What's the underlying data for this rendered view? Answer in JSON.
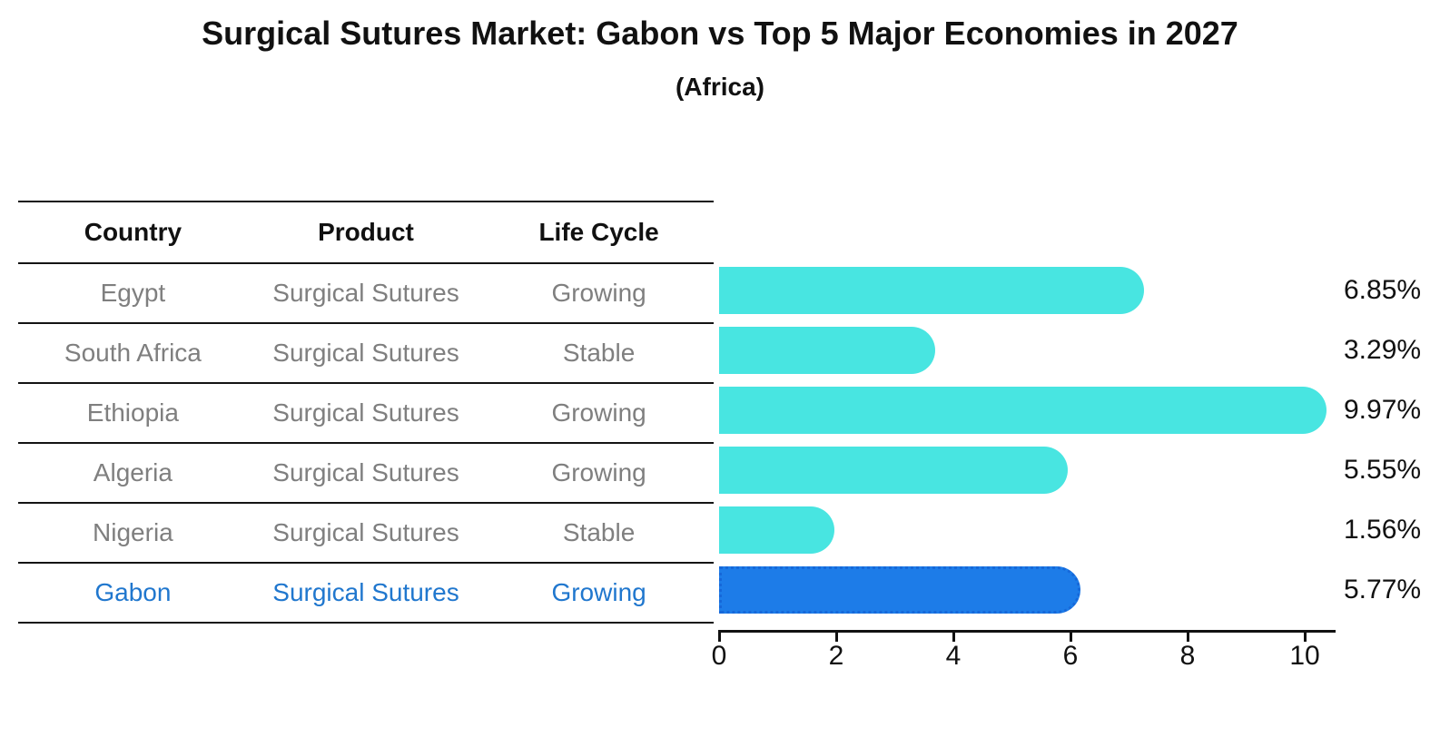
{
  "title": "Surgical Sutures Market: Gabon vs Top 5 Major Economies in 2027",
  "subtitle": "(Africa)",
  "table": {
    "headers": [
      "Country",
      "Product",
      "Life Cycle"
    ],
    "rows": [
      {
        "country": "Egypt",
        "product": "Surgical Sutures",
        "life_cycle": "Growing",
        "highlight": false
      },
      {
        "country": "South Africa",
        "product": "Surgical Sutures",
        "life_cycle": "Stable",
        "highlight": false
      },
      {
        "country": "Ethiopia",
        "product": "Surgical Sutures",
        "life_cycle": "Growing",
        "highlight": false
      },
      {
        "country": "Algeria",
        "product": "Surgical Sutures",
        "life_cycle": "Growing",
        "highlight": false
      },
      {
        "country": "Nigeria",
        "product": "Surgical Sutures",
        "life_cycle": "Stable",
        "highlight": false
      },
      {
        "country": "Gabon",
        "product": "Surgical Sutures",
        "life_cycle": "Growing",
        "highlight": true
      }
    ]
  },
  "chart_data": {
    "type": "bar",
    "orientation": "horizontal",
    "title": "Surgical Sutures Market: Gabon vs Top 5 Major Economies in 2027 (Africa)",
    "categories": [
      "Egypt",
      "South Africa",
      "Ethiopia",
      "Algeria",
      "Nigeria",
      "Gabon"
    ],
    "values": [
      6.85,
      3.29,
      9.97,
      5.55,
      1.56,
      5.77
    ],
    "value_labels": [
      "6.85%",
      "3.29%",
      "9.97%",
      "5.55%",
      "1.56%",
      "5.77%"
    ],
    "unit": "percent CAGR",
    "xlabel": "",
    "ylabel": "",
    "xlim": [
      0,
      10.5
    ],
    "xticks": [
      0,
      2,
      4,
      6,
      8,
      10
    ],
    "grid": false,
    "legend": "none",
    "bar_color": "#48e5e1",
    "highlight_index": 5,
    "highlight_color": "#1d7ce8",
    "highlight_border_color": "#1668d9",
    "highlight_text_color": "#2077ce"
  }
}
